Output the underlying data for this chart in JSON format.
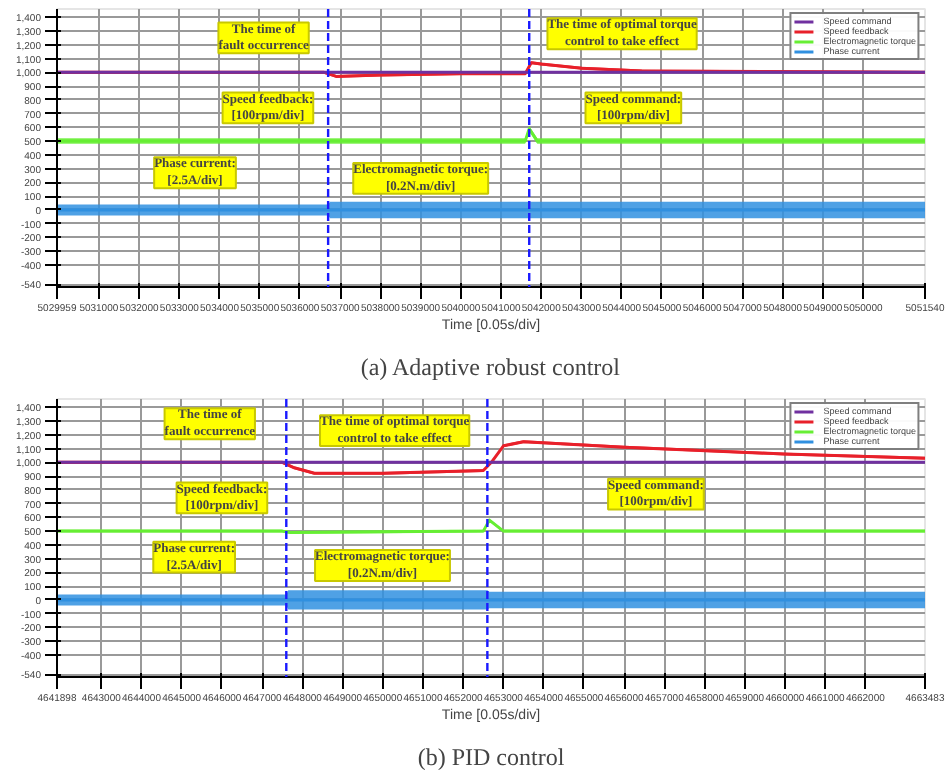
{
  "chart_data": [
    {
      "type": "line",
      "title": "(a) Adaptive robust control",
      "xlabel": "Time [0.05s/div]",
      "xlim": [
        5029959,
        5051540
      ],
      "ylim": [
        -560,
        1460
      ],
      "xticks": [
        5029959,
        5031000,
        5032000,
        5033000,
        5034000,
        5035000,
        5036000,
        5037000,
        5038000,
        5039000,
        5040000,
        5041000,
        5042000,
        5043000,
        5044000,
        5045000,
        5046000,
        5047000,
        5048000,
        5049000,
        5050000,
        5051540
      ],
      "yticks": [
        -540,
        -400,
        -300,
        -200,
        -100,
        0,
        100,
        200,
        300,
        400,
        500,
        600,
        700,
        800,
        900,
        {
          "value": 1000,
          "label": "1,000"
        },
        {
          "value": 1100,
          "label": "1,100"
        },
        {
          "value": 1200,
          "label": "1,200"
        },
        {
          "value": 1300,
          "label": "1,300"
        },
        {
          "value": 1400,
          "label": "1,400"
        }
      ],
      "grid": true,
      "legend": "top right",
      "marker": "none",
      "line_style": "solid",
      "series": [
        {
          "name": "Speed command",
          "color": "#7030a0",
          "x": [
            5029959,
            5051540
          ],
          "values": [
            1000,
            1000
          ]
        },
        {
          "name": "Speed feedback",
          "color": "#e8202a",
          "x": [
            5029959,
            5036600,
            5036900,
            5038000,
            5040000,
            5041600,
            5041750,
            5042000,
            5043000,
            5044500,
            5051540
          ],
          "values": [
            1000,
            1000,
            970,
            980,
            990,
            990,
            1070,
            1060,
            1030,
            1010,
            1000
          ],
          "lower": [
            990,
            990,
            960,
            970,
            980,
            980,
            1060,
            1050,
            1020,
            1000,
            990
          ],
          "upper": [
            1010,
            1010,
            980,
            990,
            1000,
            1000,
            1080,
            1070,
            1040,
            1020,
            1010
          ]
        },
        {
          "name": "Electromagnetic torque",
          "color": "#66ee33",
          "x": [
            5029959,
            5041600,
            5041700,
            5041900,
            5051540
          ],
          "values": [
            500,
            500,
            590,
            500,
            500
          ],
          "lower": [
            480,
            480,
            570,
            480,
            480
          ],
          "upper": [
            520,
            520,
            610,
            520,
            520
          ]
        },
        {
          "name": "Phase current",
          "color": "#3090e0",
          "x": [
            5029959,
            5036700,
            5036750,
            5051540
          ],
          "values": [
            0,
            0,
            0,
            0
          ],
          "lower": [
            -40,
            -40,
            -60,
            -60
          ],
          "upper": [
            40,
            40,
            60,
            60
          ]
        }
      ],
      "ref_lines": [
        {
          "axis": "x",
          "value": 5036700,
          "color": "#1a1aff",
          "line_style": "dashed"
        },
        {
          "axis": "x",
          "value": 5041700,
          "color": "#1a1aff",
          "line_style": "dashed"
        }
      ],
      "annotations": [
        "The time of\nfault occurrence",
        "Speed feedback:\n[100rpm/div]",
        "Phase current:\n[2.5A/div]",
        "Electromagnetic torque:\n[0.2N.m/div]",
        "The time of optimal torque\ncontrol to take effect",
        "Speed command:\n[100rpm/div]"
      ]
    },
    {
      "type": "line",
      "title": "(b) PID control",
      "xlabel": "Time [0.05s/div]",
      "xlim": [
        4641898,
        4663483
      ],
      "ylim": [
        -560,
        1460
      ],
      "xticks": [
        4641898,
        4643000,
        4644000,
        4645000,
        4646000,
        4647000,
        4648000,
        4649000,
        4650000,
        4651000,
        4652000,
        4653000,
        4654000,
        4655000,
        4656000,
        4657000,
        4658000,
        4659000,
        4660000,
        4661000,
        4662000,
        4663483
      ],
      "yticks": [
        -540,
        -400,
        -300,
        -200,
        -100,
        0,
        100,
        200,
        300,
        400,
        500,
        600,
        700,
        800,
        900,
        {
          "value": 1000,
          "label": "1,000"
        },
        {
          "value": 1100,
          "label": "1,100"
        },
        {
          "value": 1200,
          "label": "1,200"
        },
        {
          "value": 1300,
          "label": "1,300"
        },
        {
          "value": 1400,
          "label": "1,400"
        }
      ],
      "grid": true,
      "legend": "top right",
      "marker": "none",
      "line_style": "solid",
      "series": [
        {
          "name": "Speed command",
          "color": "#7030a0",
          "x": [
            4641898,
            4663483
          ],
          "values": [
            1000,
            1000
          ]
        },
        {
          "name": "Speed feedback",
          "color": "#e8202a",
          "x": [
            4641898,
            4647500,
            4647800,
            4648300,
            4650000,
            4652500,
            4652700,
            4653000,
            4653500,
            4656000,
            4660000,
            4663483
          ],
          "values": [
            1000,
            1000,
            960,
            920,
            920,
            940,
            1000,
            1120,
            1150,
            1110,
            1060,
            1030
          ],
          "lower": [
            990,
            990,
            950,
            910,
            910,
            930,
            990,
            1110,
            1140,
            1100,
            1050,
            1020
          ],
          "upper": [
            1010,
            1010,
            970,
            930,
            930,
            950,
            1010,
            1130,
            1160,
            1120,
            1070,
            1040
          ]
        },
        {
          "name": "Electromagnetic torque",
          "color": "#66ee33",
          "x": [
            4641898,
            4647500,
            4647700,
            4652500,
            4652650,
            4653000,
            4663483
          ],
          "values": [
            500,
            500,
            490,
            500,
            580,
            500,
            500
          ],
          "lower": [
            490,
            490,
            480,
            490,
            570,
            490,
            490
          ],
          "upper": [
            510,
            510,
            500,
            510,
            590,
            510,
            510
          ]
        },
        {
          "name": "Phase current",
          "color": "#3090e0",
          "x": [
            4641898,
            4647600,
            4647650,
            4652600,
            4652650,
            4663483
          ],
          "values": [
            0,
            0,
            0,
            0,
            0,
            0
          ],
          "lower": [
            -40,
            -40,
            -70,
            -70,
            -60,
            -60
          ],
          "upper": [
            40,
            40,
            70,
            70,
            60,
            60
          ]
        }
      ],
      "ref_lines": [
        {
          "axis": "x",
          "value": 4647600,
          "color": "#1a1aff",
          "line_style": "dashed"
        },
        {
          "axis": "x",
          "value": 4652600,
          "color": "#1a1aff",
          "line_style": "dashed"
        }
      ],
      "annotations": [
        "The time of\nfault occurrence",
        "Speed feedback:\n[100rpm/div]",
        "Phase current:\n[2.5A/div]",
        "Electromagnetic torque:\n[0.2N.m/div]",
        "The time of optimal torque\ncontrol to take effect",
        "Speed command:\n[100rpm/div]"
      ]
    }
  ]
}
